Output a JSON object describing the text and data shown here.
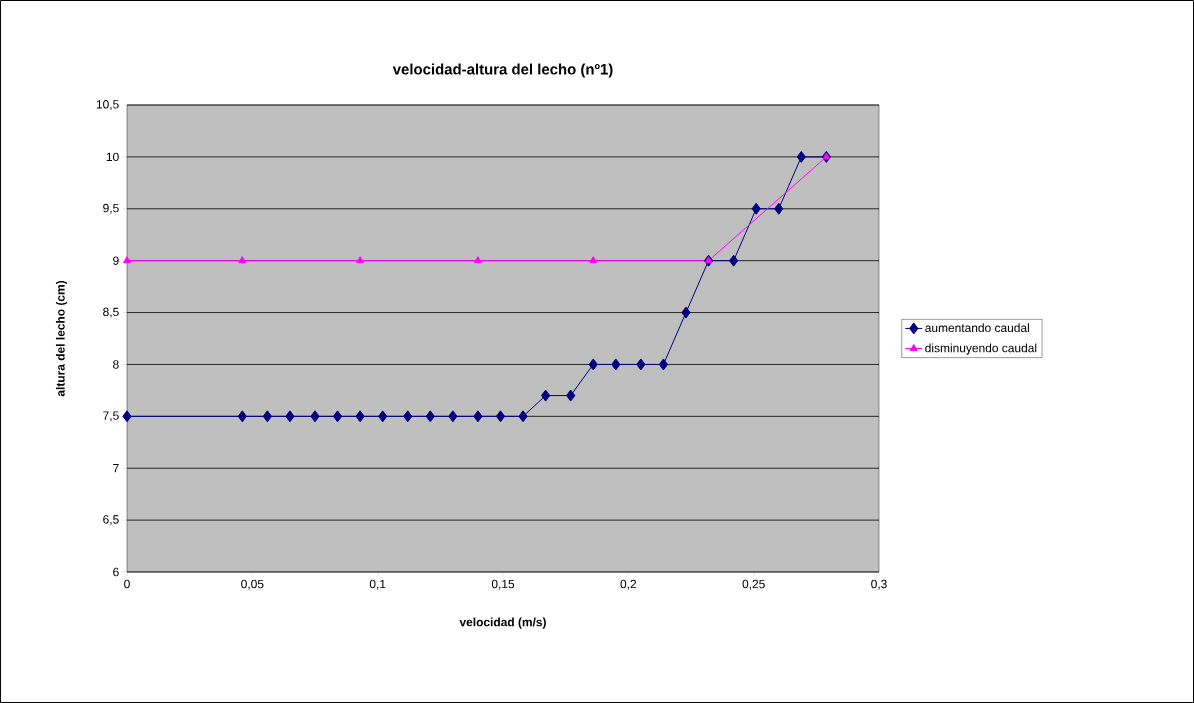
{
  "chart_data": {
    "type": "line",
    "title": "velocidad-altura del lecho (nº1)",
    "xlabel": "velocidad (m/s)",
    "ylabel": "altura del lecho (cm)",
    "xlim": [
      0,
      0.3
    ],
    "ylim": [
      6,
      10.5
    ],
    "xticks": [
      0,
      {
        "value": 0.05,
        "label": "0,05"
      },
      {
        "value": 0.1,
        "label": "0,1"
      },
      {
        "value": 0.15,
        "label": "0,15"
      },
      {
        "value": 0.2,
        "label": "0,2"
      },
      {
        "value": 0.25,
        "label": "0,25"
      },
      {
        "value": 0.3,
        "label": "0,3"
      }
    ],
    "yticks": [
      6,
      {
        "value": 6.5,
        "label": "6,5"
      },
      7,
      {
        "value": 7.5,
        "label": "7,5"
      },
      8,
      {
        "value": 8.5,
        "label": "8,5"
      },
      9,
      {
        "value": 9.5,
        "label": "9,5"
      },
      10,
      {
        "value": 10.5,
        "label": "10,5"
      }
    ],
    "grid": "y",
    "legend": "right",
    "series": [
      {
        "name": "aumentando caudal",
        "color": "#000080",
        "marker": "diamond",
        "x": [
          0,
          0.046,
          0.056,
          0.065,
          0.075,
          0.084,
          0.093,
          0.102,
          0.112,
          0.121,
          0.13,
          0.14,
          0.149,
          0.158,
          0.167,
          0.177,
          0.186,
          0.195,
          0.205,
          0.214,
          0.223,
          0.232,
          0.242,
          0.251,
          0.26,
          0.269,
          0.279
        ],
        "values": [
          7.5,
          7.5,
          7.5,
          7.5,
          7.5,
          7.5,
          7.5,
          7.5,
          7.5,
          7.5,
          7.5,
          7.5,
          7.5,
          7.5,
          7.7,
          7.7,
          8,
          8,
          8,
          8,
          8.5,
          9,
          9,
          9.5,
          9.5,
          10,
          10
        ]
      },
      {
        "name": "disminuyendo caudal",
        "color": "#ff00ff",
        "marker": "triangle",
        "x": [
          0,
          0.046,
          0.093,
          0.14,
          0.186,
          0.232,
          0.279
        ],
        "values": [
          9,
          9,
          9,
          9,
          9,
          9,
          10
        ]
      }
    ]
  }
}
